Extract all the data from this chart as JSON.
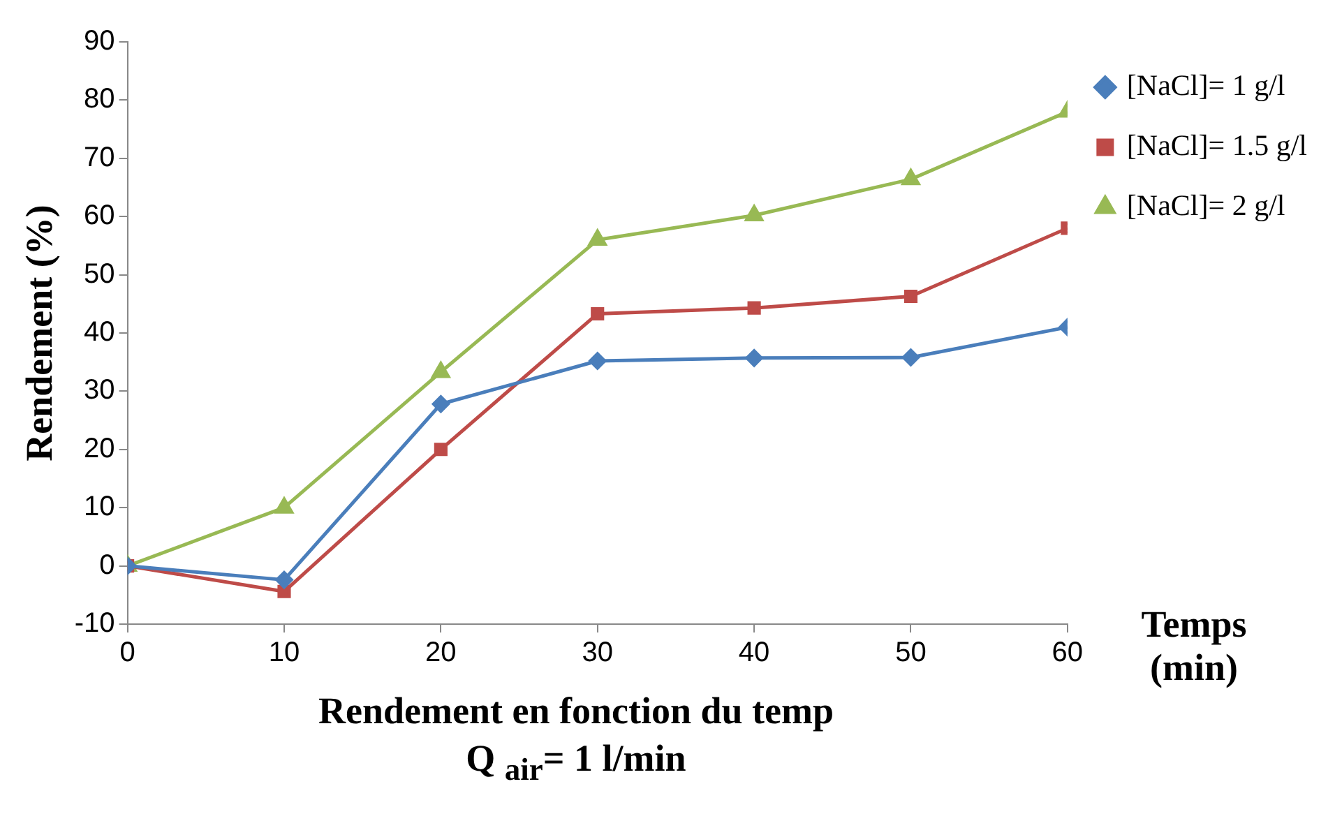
{
  "chart_data": {
    "type": "line",
    "title": "Rendement en fonction du temp\nQ $_{air}$= 1 l/min",
    "xlabel": "Temps (min)",
    "ylabel": "Rendement (%)",
    "x": [
      0,
      10,
      20,
      30,
      40,
      50,
      60
    ],
    "series": [
      {
        "name": "[NaCl]= 1 g/l",
        "color": "#4a7ebb",
        "marker": "diamond",
        "values": [
          0,
          -2.4,
          27.8,
          35.2,
          35.7,
          35.8,
          41
        ]
      },
      {
        "name": "[NaCl]= 1.5 g/l",
        "color": "#be4b48",
        "marker": "square",
        "values": [
          0,
          -4.4,
          20,
          43.3,
          44.3,
          46.3,
          58
        ]
      },
      {
        "name": "[NaCl]= 2 g/l",
        "color": "#98b954",
        "marker": "triangle",
        "values": [
          0,
          10,
          33.3,
          56,
          60.2,
          66.4,
          78
        ]
      }
    ],
    "xlim": [
      0,
      60
    ],
    "xticks": [
      0,
      10,
      20,
      30,
      40,
      50,
      60
    ],
    "ylim": [
      -10,
      90
    ],
    "yticks": [
      -10,
      0,
      10,
      20,
      30,
      40,
      50,
      60,
      70,
      80,
      90
    ],
    "grid": false,
    "legend": "top right",
    "line_style": "solid"
  }
}
